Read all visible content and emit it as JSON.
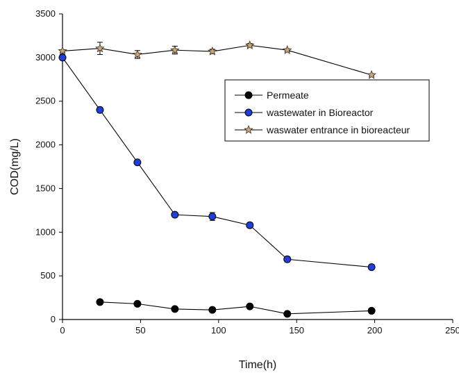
{
  "chart_data": {
    "type": "line",
    "title": "",
    "xlabel": "Time(h)",
    "ylabel": "COD(mg/L)",
    "xlim": [
      0,
      250
    ],
    "ylim": [
      0,
      3500
    ],
    "xticks": [
      "0",
      "50",
      "100",
      "150",
      "200",
      "250"
    ],
    "yticks": [
      "0",
      "500",
      "1000",
      "1500",
      "2000",
      "2500",
      "3000",
      "3500"
    ],
    "grid": false,
    "legend_position": "center-right",
    "series": [
      {
        "name": "Permeate",
        "marker": "circle",
        "color": "#000000",
        "x": [
          24,
          48,
          72,
          96,
          120,
          144,
          198
        ],
        "y": [
          200,
          180,
          120,
          110,
          150,
          65,
          100
        ],
        "err": [
          20,
          20,
          15,
          15,
          20,
          15,
          20
        ]
      },
      {
        "name": "wastewater in Bioreactor",
        "marker": "circle",
        "color": "#1f3fd6",
        "x": [
          0,
          24,
          48,
          72,
          96,
          120,
          144,
          198
        ],
        "y": [
          3000,
          2400,
          1800,
          1200,
          1180,
          1080,
          690,
          600
        ],
        "err": [
          20,
          30,
          20,
          20,
          45,
          30,
          30,
          15
        ]
      },
      {
        "name": "waswater entrance in bioreacteur",
        "marker": "star",
        "color": "#c8a77e",
        "x": [
          0,
          24,
          48,
          72,
          96,
          120,
          144,
          198
        ],
        "y": [
          3075,
          3105,
          3035,
          3085,
          3070,
          3140,
          3085,
          2800
        ],
        "err": [
          15,
          70,
          45,
          45,
          25,
          20,
          15,
          15
        ]
      }
    ]
  }
}
